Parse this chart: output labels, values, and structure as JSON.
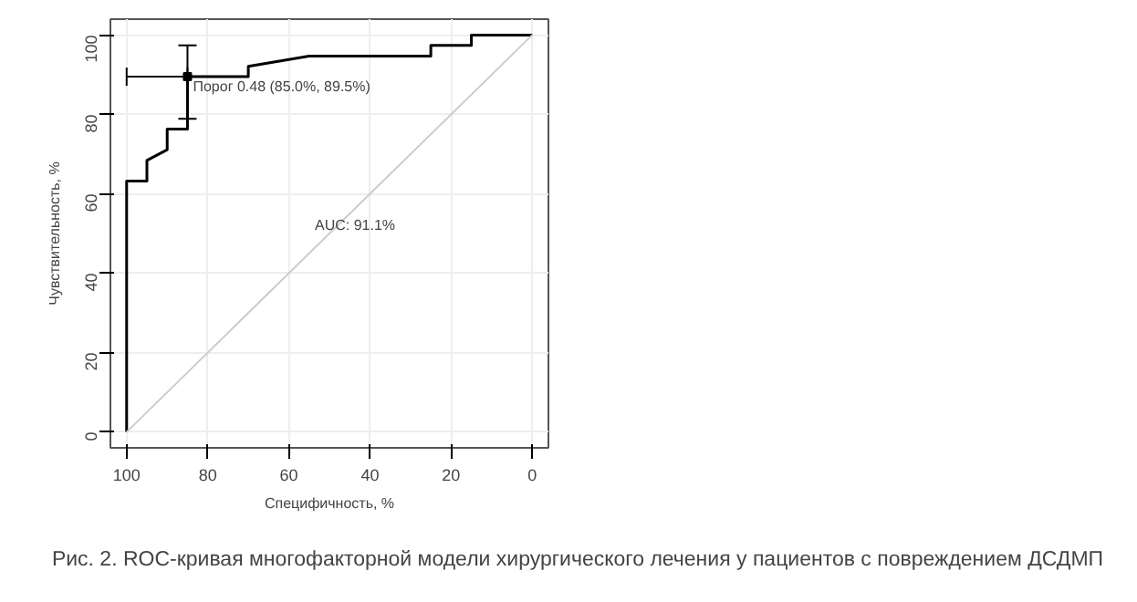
{
  "chart_data": {
    "type": "line",
    "xlabel": "Специфичность, %",
    "ylabel": "Чувствительность, %",
    "xlim": [
      104,
      -4
    ],
    "ylim": [
      -4,
      104
    ],
    "xticks": [
      100,
      80,
      60,
      40,
      20,
      0
    ],
    "yticks": [
      0,
      20,
      40,
      60,
      80,
      100
    ],
    "grid": true,
    "line_style": "solid",
    "marker": "none",
    "series": [
      {
        "color": "#000000",
        "x": [
          100,
          100,
          95,
          95,
          90,
          90,
          85,
          85,
          70,
          70,
          55,
          25,
          25,
          15,
          15,
          0
        ],
        "values": [
          0,
          63.2,
          63.2,
          68.4,
          71.1,
          76.3,
          76.3,
          89.5,
          89.5,
          92.1,
          94.7,
          94.7,
          97.4,
          97.4,
          100,
          100
        ]
      },
      {
        "type": "line",
        "color": "#cccccc",
        "x": [
          100,
          0
        ],
        "values": [
          0,
          100
        ]
      },
      {
        "type": "scatter",
        "marker": "square",
        "color": "#000000",
        "x": [
          85
        ],
        "values": [
          89.5
        ],
        "errors": [
          [
            78.9,
            97.4
          ]
        ],
        "xerrors": [
          [
            85,
            100
          ]
        ]
      }
    ],
    "annotations": [
      {
        "text": "Порог 0.48 (85.0%, 89.5%)",
        "x": 85,
        "y": 89.5
      },
      "AUC: 91.1%",
      "Рис. 2. ROC-кривая многофакторной модели хирургического лечения у пациентов с повреждением ДСДМП"
    ]
  }
}
